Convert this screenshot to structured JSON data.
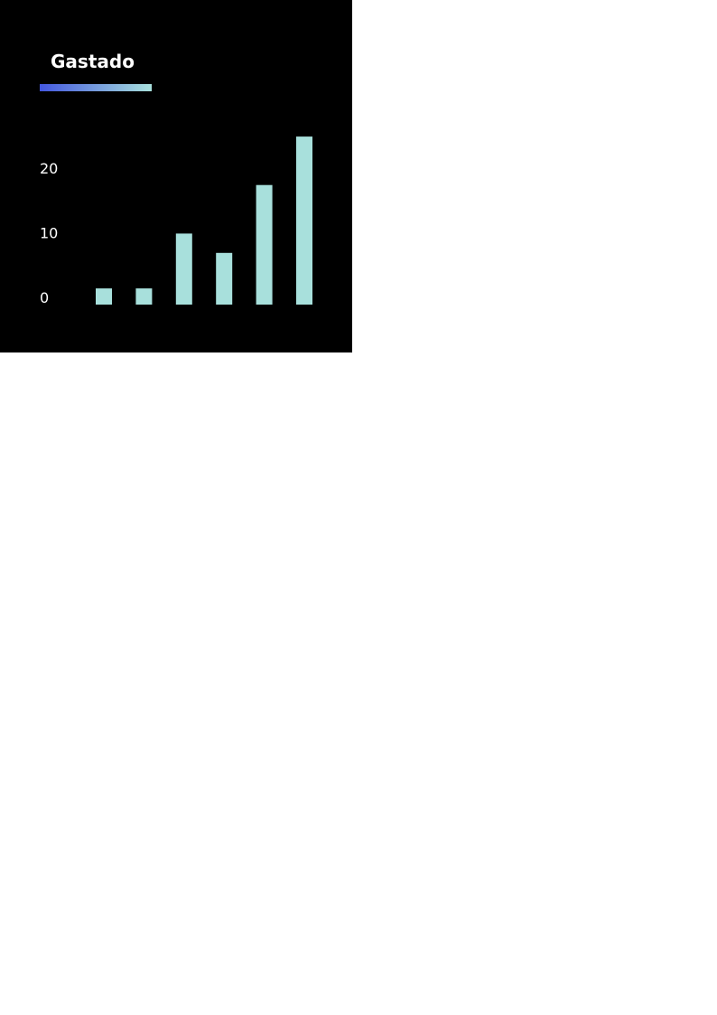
{
  "chart_data": {
    "type": "bar",
    "title": "Gastado",
    "xlabel": "",
    "ylabel": "",
    "categories": [
      "",
      "",
      "",
      "",
      "",
      ""
    ],
    "values": [
      2.5,
      2.5,
      11,
      8,
      18.5,
      26
    ],
    "yticks": [
      "0",
      "10",
      "20"
    ],
    "ytick_values": [
      0,
      10,
      20
    ],
    "ylim": [
      0,
      27
    ],
    "grid": false
  },
  "colors": {
    "background": "#000000",
    "bar": "#a8e0dc",
    "text": "#ffffff",
    "underline_start": "#4357e0",
    "underline_end": "#a8e0dc"
  }
}
